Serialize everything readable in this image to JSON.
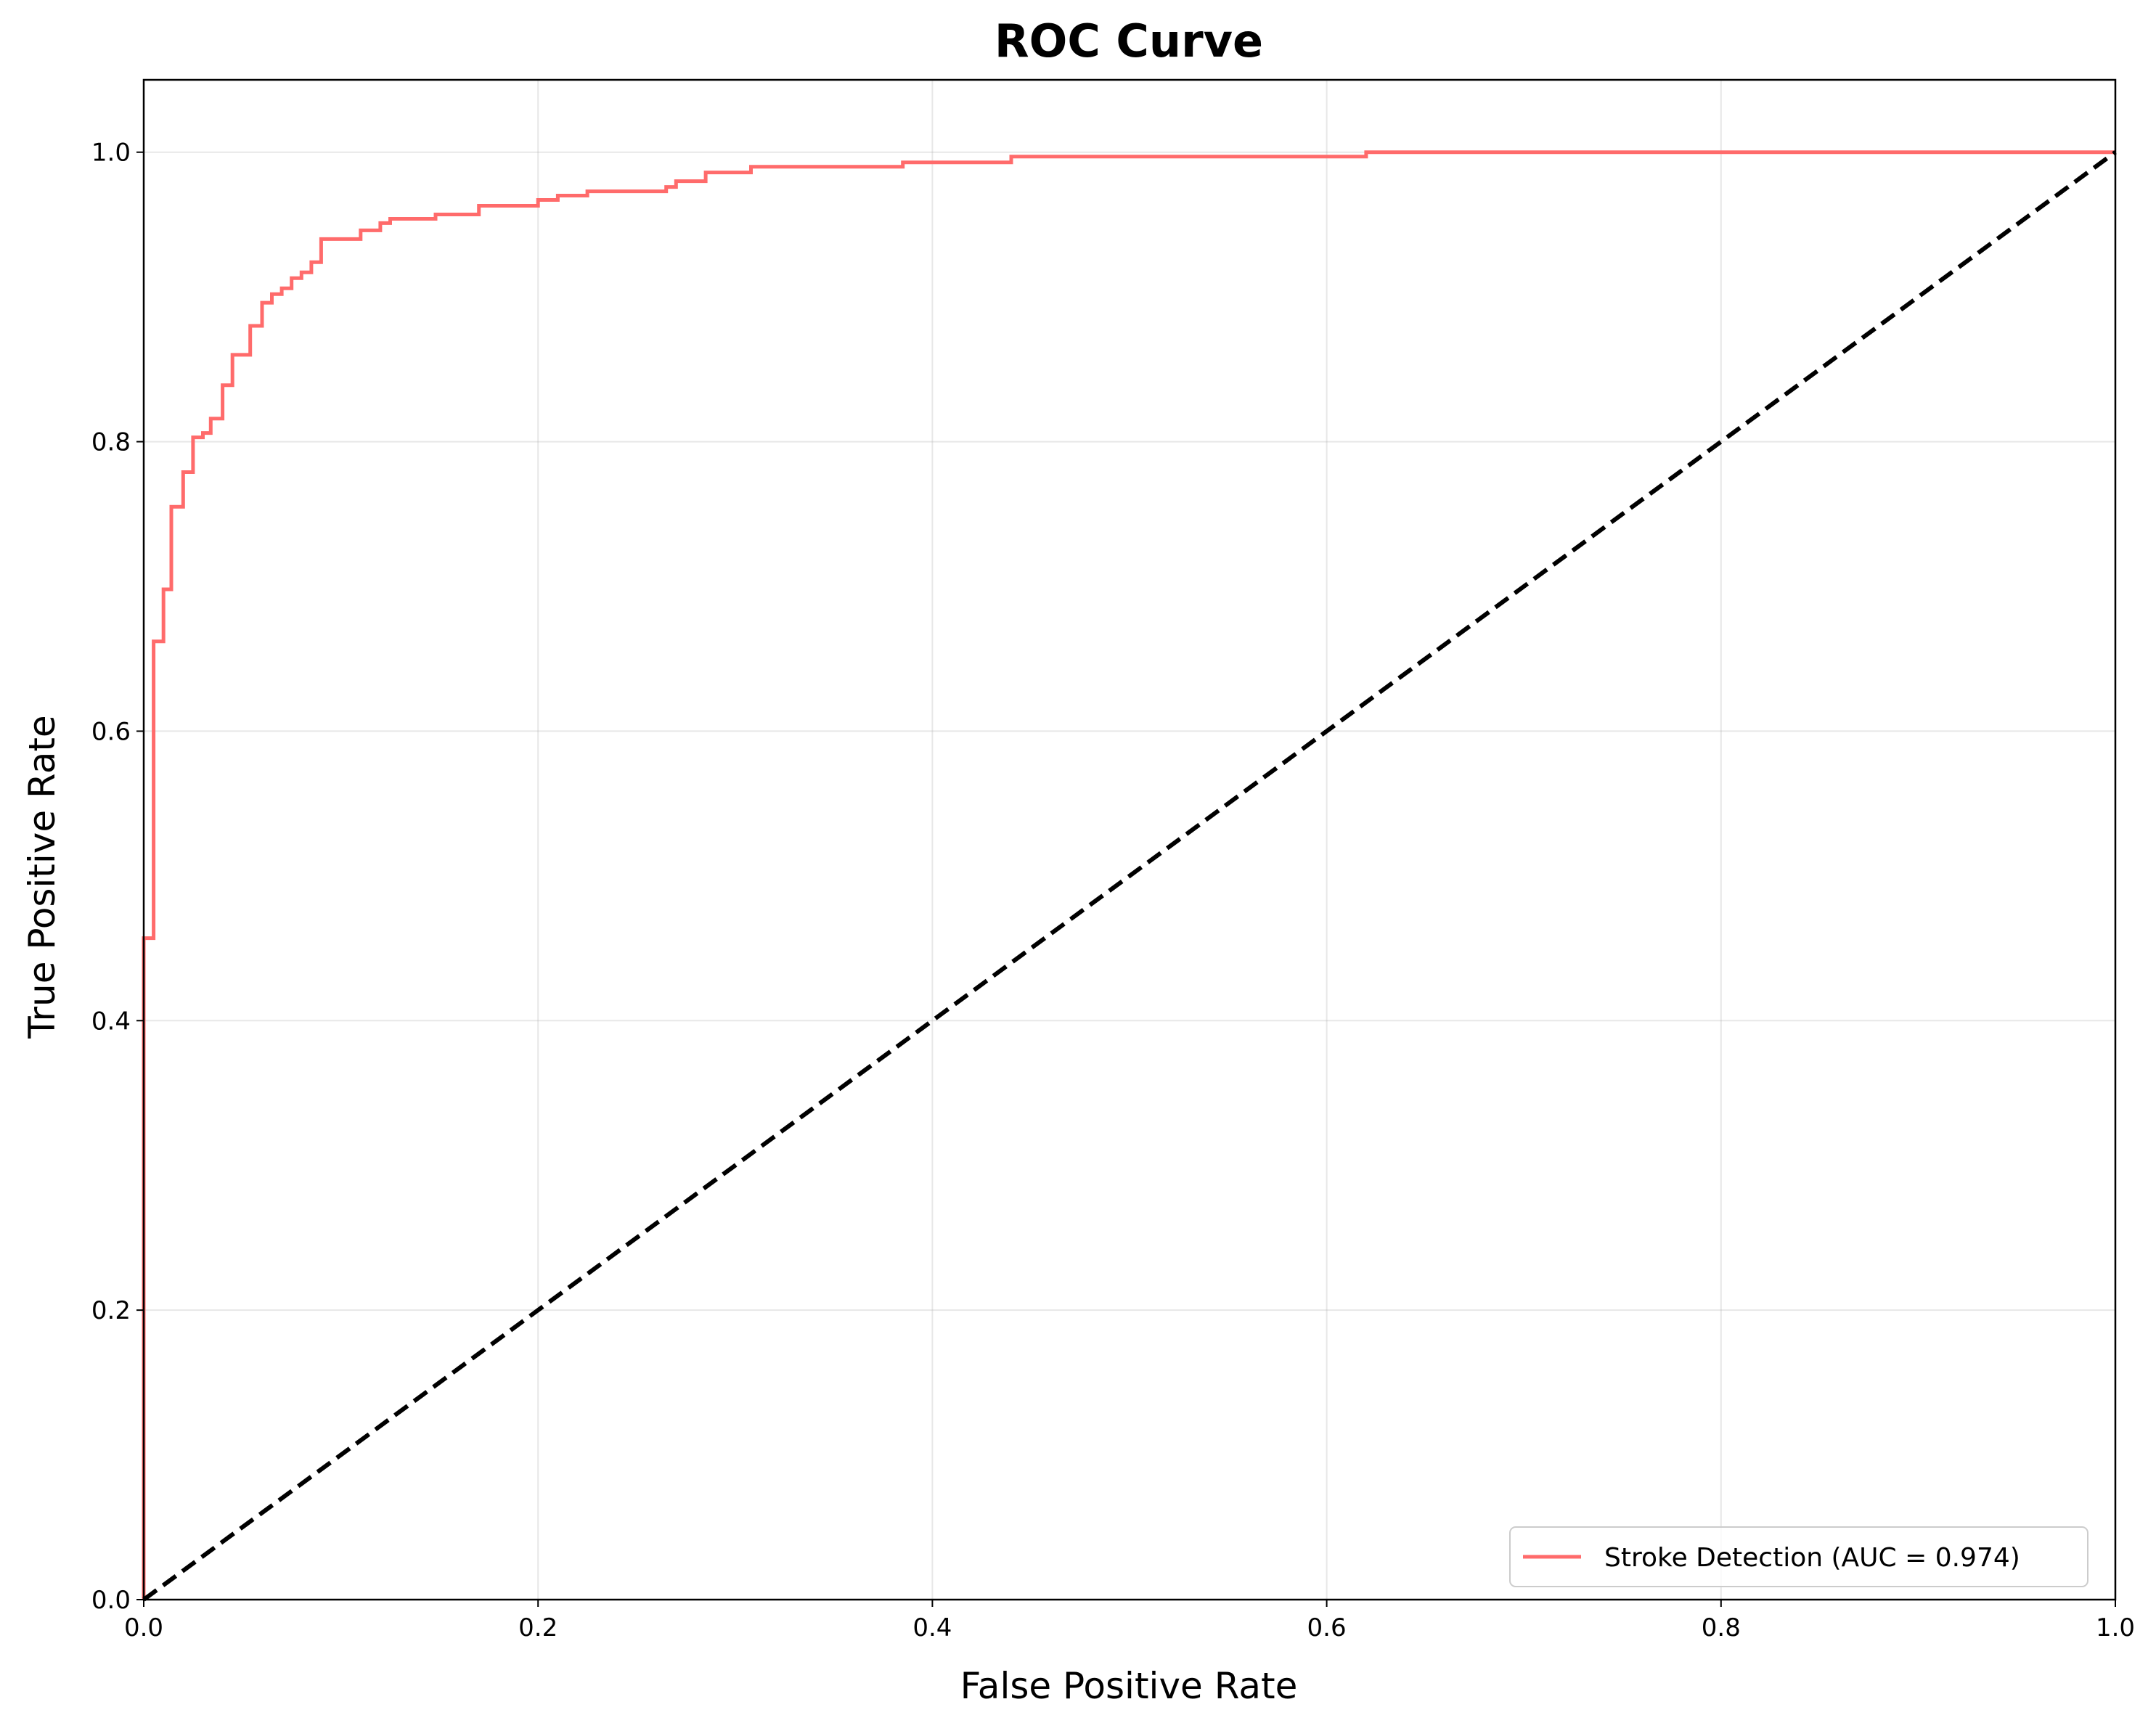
{
  "chart_data": {
    "type": "line",
    "title": "ROC Curve",
    "xlabel": "False Positive Rate",
    "ylabel": "True Positive Rate",
    "xlim": [
      0.0,
      1.0
    ],
    "ylim": [
      0.0,
      1.05
    ],
    "xticks": [
      "0.0",
      "0.2",
      "0.4",
      "0.6",
      "0.8",
      "1.0"
    ],
    "yticks": [
      "0.0",
      "0.2",
      "0.4",
      "0.6",
      "0.8",
      "1.0"
    ],
    "grid": true,
    "legend_position": "lower right",
    "series": [
      {
        "name": "Stroke Detection (AUC = 0.974)",
        "color": "#ff6b6b",
        "style": "solid",
        "x": [
          0.0,
          0.0,
          0.005,
          0.005,
          0.01,
          0.01,
          0.014,
          0.014,
          0.02,
          0.02,
          0.025,
          0.025,
          0.03,
          0.03,
          0.034,
          0.034,
          0.04,
          0.04,
          0.045,
          0.045,
          0.054,
          0.054,
          0.06,
          0.06,
          0.065,
          0.065,
          0.07,
          0.07,
          0.075,
          0.075,
          0.08,
          0.08,
          0.085,
          0.085,
          0.09,
          0.09,
          0.11,
          0.11,
          0.12,
          0.12,
          0.125,
          0.125,
          0.148,
          0.148,
          0.17,
          0.17,
          0.2,
          0.2,
          0.21,
          0.21,
          0.225,
          0.225,
          0.265,
          0.265,
          0.27,
          0.27,
          0.285,
          0.285,
          0.308,
          0.308,
          0.385,
          0.385,
          0.44,
          0.44,
          0.62,
          0.62,
          1.0
        ],
        "y": [
          0.0,
          0.457,
          0.457,
          0.662,
          0.662,
          0.698,
          0.698,
          0.755,
          0.755,
          0.779,
          0.779,
          0.803,
          0.803,
          0.806,
          0.806,
          0.816,
          0.816,
          0.839,
          0.839,
          0.86,
          0.86,
          0.88,
          0.88,
          0.896,
          0.896,
          0.902,
          0.902,
          0.906,
          0.906,
          0.913,
          0.913,
          0.917,
          0.917,
          0.924,
          0.924,
          0.94,
          0.94,
          0.946,
          0.946,
          0.951,
          0.951,
          0.954,
          0.954,
          0.957,
          0.957,
          0.963,
          0.963,
          0.967,
          0.967,
          0.97,
          0.97,
          0.973,
          0.973,
          0.976,
          0.976,
          0.98,
          0.98,
          0.986,
          0.986,
          0.99,
          0.99,
          0.993,
          0.993,
          0.997,
          0.997,
          1.0,
          1.0
        ]
      },
      {
        "name": "",
        "color": "#000000",
        "style": "dashed",
        "x": [
          0.0,
          1.0
        ],
        "y": [
          0.0,
          1.0
        ]
      }
    ]
  }
}
